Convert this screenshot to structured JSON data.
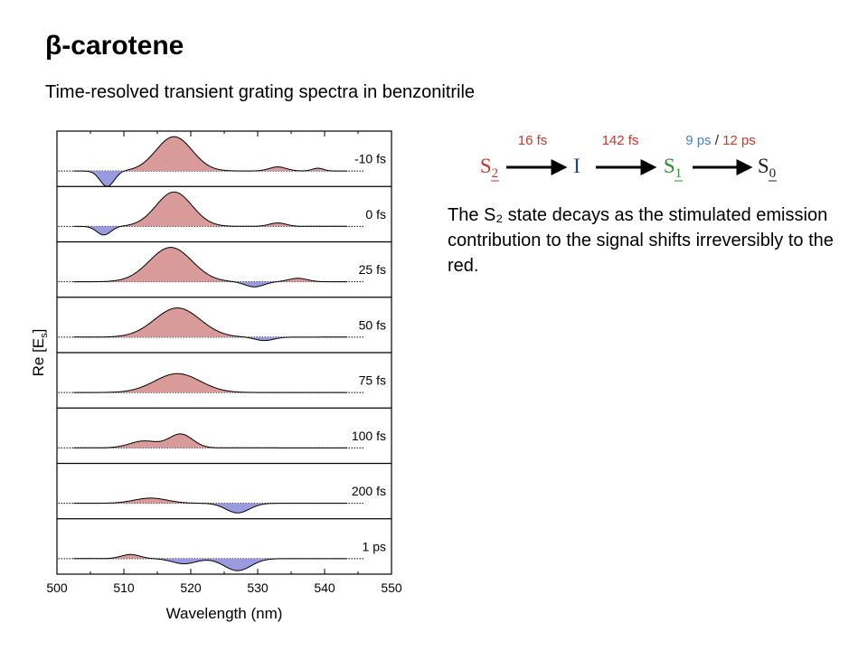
{
  "slide": {
    "title": "β-carotene",
    "subtitle": "Time-resolved transient grating spectra in benzonitrile",
    "description": "The S₂ state decays as the stimulated emission contribution to the signal shifts irreversibly to the red."
  },
  "kinetic_scheme": {
    "states": [
      {
        "base": "S",
        "sub": "2",
        "color": "#c0392b"
      },
      {
        "base": "I",
        "sub": "",
        "color": "#1f3fa0"
      },
      {
        "base": "S",
        "sub": "1",
        "color": "#2e8b2e"
      },
      {
        "base": "S",
        "sub": "0",
        "color": "#222222"
      }
    ],
    "time_constants": [
      {
        "parts": [
          {
            "text": "16 fs",
            "color": "#c0392b"
          }
        ]
      },
      {
        "parts": [
          {
            "text": "142 fs",
            "color": "#c0392b"
          }
        ]
      },
      {
        "parts": [
          {
            "text": "9 ps",
            "color": "#4a7fc1"
          },
          {
            "text": " / ",
            "color": "#222222"
          },
          {
            "text": "12 ps",
            "color": "#c0392b"
          }
        ]
      }
    ]
  },
  "chart_data": {
    "type": "area",
    "xlabel": "Wavelength (nm)",
    "ylabel": "Re [E_s]",
    "xlim": [
      500,
      550
    ],
    "x_ticks": [
      500,
      510,
      520,
      530,
      540,
      550
    ],
    "positive_color": "#d99a9a",
    "negative_color": "#9a9ae0",
    "series": [
      {
        "name": "-10 fs",
        "peaks": [
          [
            507.5,
            -0.45,
            1.5
          ],
          [
            517.5,
            1.0,
            3.8
          ],
          [
            533,
            0.12,
            1.8
          ],
          [
            539,
            0.08,
            1.2
          ]
        ]
      },
      {
        "name": "0 fs",
        "peaks": [
          [
            507,
            -0.25,
            1.5
          ],
          [
            517.5,
            1.0,
            3.8
          ],
          [
            533,
            0.1,
            1.8
          ]
        ]
      },
      {
        "name": "25 fs",
        "peaks": [
          [
            517,
            1.0,
            4.5
          ],
          [
            529.5,
            -0.15,
            2.0
          ],
          [
            536,
            0.1,
            2.0
          ]
        ]
      },
      {
        "name": "50 fs",
        "peaks": [
          [
            518,
            0.85,
            4.8
          ],
          [
            531,
            -0.1,
            2.0
          ]
        ]
      },
      {
        "name": "75 fs",
        "peaks": [
          [
            518,
            0.55,
            4.8
          ]
        ]
      },
      {
        "name": "100 fs",
        "peaks": [
          [
            513,
            0.2,
            3.0
          ],
          [
            518.5,
            0.4,
            2.5
          ]
        ]
      },
      {
        "name": "200 fs",
        "peaks": [
          [
            514,
            0.15,
            3.5
          ],
          [
            527,
            -0.28,
            2.5
          ]
        ]
      },
      {
        "name": "1 ps",
        "peaks": [
          [
            511,
            0.12,
            2.0
          ],
          [
            519,
            -0.15,
            2.5
          ],
          [
            527,
            -0.35,
            2.8
          ]
        ]
      }
    ]
  }
}
